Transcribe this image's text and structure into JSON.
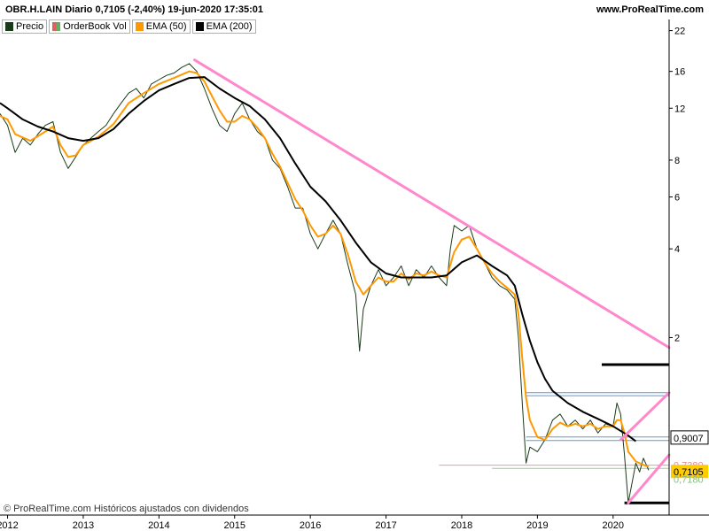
{
  "header": {
    "title": "OBR.H.LAIN Diario 0,7105 (-2,40%) 19-jun-2020 17:35:01",
    "site": "www.ProRealTime.com"
  },
  "legend": [
    {
      "label": "Precio",
      "color": "#1a3a1a"
    },
    {
      "label": "OrderBook Vol",
      "color": "#7fbf7f"
    },
    {
      "label": "EMA (50)",
      "color": "#ff9900"
    },
    {
      "label": "EMA (200)",
      "color": "#000000"
    }
  ],
  "footer": "© ProRealTime.com  Históricos ajustados con dividendos",
  "chart_data": {
    "type": "line",
    "scale": "log",
    "ylim": [
      0.5,
      24
    ],
    "y_ticks": [
      {
        "value": 22,
        "label": "22"
      },
      {
        "value": 16,
        "label": "16"
      },
      {
        "value": 12,
        "label": "12"
      },
      {
        "value": 8,
        "label": "8"
      },
      {
        "value": 6,
        "label": "6"
      },
      {
        "value": 4,
        "label": "4"
      },
      {
        "value": 2,
        "label": "2"
      }
    ],
    "x_ticks": [
      "2012",
      "2013",
      "2014",
      "2015",
      "2016",
      "2017",
      "2018",
      "2019",
      "2020"
    ],
    "x_range": [
      2011.9,
      2020.74
    ],
    "price_labels": [
      {
        "value": 0.9007,
        "label": "0,9007",
        "style": "plain"
      },
      {
        "value": 0.738,
        "label": "0,7380",
        "style": "faint-red"
      },
      {
        "value": 0.7105,
        "label": "0,7105",
        "style": "highlight"
      },
      {
        "value": 0.7,
        "label": "0,7180",
        "style": "faint-green"
      }
    ],
    "series": [
      {
        "name": "Precio",
        "color": "#1a3a1a",
        "points": [
          [
            2011.9,
            11.5
          ],
          [
            2012.0,
            10.5
          ],
          [
            2012.1,
            8.5
          ],
          [
            2012.2,
            9.5
          ],
          [
            2012.3,
            9.0
          ],
          [
            2012.4,
            9.8
          ],
          [
            2012.5,
            10.5
          ],
          [
            2012.6,
            10.8
          ],
          [
            2012.7,
            8.5
          ],
          [
            2012.8,
            7.5
          ],
          [
            2012.9,
            8.2
          ],
          [
            2013.0,
            9.0
          ],
          [
            2013.1,
            9.5
          ],
          [
            2013.2,
            10.0
          ],
          [
            2013.3,
            10.5
          ],
          [
            2013.4,
            11.5
          ],
          [
            2013.5,
            12.5
          ],
          [
            2013.6,
            13.5
          ],
          [
            2013.7,
            14.0
          ],
          [
            2013.8,
            13.0
          ],
          [
            2013.9,
            14.5
          ],
          [
            2014.0,
            15.0
          ],
          [
            2014.1,
            15.5
          ],
          [
            2014.2,
            15.8
          ],
          [
            2014.3,
            16.5
          ],
          [
            2014.4,
            17.0
          ],
          [
            2014.5,
            16.0
          ],
          [
            2014.6,
            14.0
          ],
          [
            2014.7,
            12.0
          ],
          [
            2014.8,
            10.5
          ],
          [
            2014.9,
            10.0
          ],
          [
            2015.0,
            11.5
          ],
          [
            2015.1,
            12.5
          ],
          [
            2015.2,
            11.0
          ],
          [
            2015.3,
            10.0
          ],
          [
            2015.4,
            9.5
          ],
          [
            2015.5,
            8.0
          ],
          [
            2015.6,
            7.5
          ],
          [
            2015.7,
            6.5
          ],
          [
            2015.8,
            5.5
          ],
          [
            2015.9,
            5.5
          ],
          [
            2016.0,
            4.5
          ],
          [
            2016.1,
            4.0
          ],
          [
            2016.2,
            4.5
          ],
          [
            2016.3,
            5.0
          ],
          [
            2016.4,
            4.5
          ],
          [
            2016.5,
            3.5
          ],
          [
            2016.6,
            2.8
          ],
          [
            2016.65,
            1.8
          ],
          [
            2016.7,
            2.5
          ],
          [
            2016.8,
            3.0
          ],
          [
            2016.9,
            3.4
          ],
          [
            2017.0,
            3.0
          ],
          [
            2017.1,
            3.2
          ],
          [
            2017.2,
            3.5
          ],
          [
            2017.3,
            3.0
          ],
          [
            2017.4,
            3.4
          ],
          [
            2017.5,
            3.2
          ],
          [
            2017.6,
            3.5
          ],
          [
            2017.7,
            3.2
          ],
          [
            2017.8,
            3.0
          ],
          [
            2017.85,
            4.0
          ],
          [
            2017.9,
            4.8
          ],
          [
            2018.0,
            4.6
          ],
          [
            2018.1,
            4.8
          ],
          [
            2018.2,
            4.0
          ],
          [
            2018.3,
            3.6
          ],
          [
            2018.4,
            3.2
          ],
          [
            2018.5,
            3.0
          ],
          [
            2018.6,
            2.9
          ],
          [
            2018.7,
            2.7
          ],
          [
            2018.75,
            2.0
          ],
          [
            2018.8,
            1.2
          ],
          [
            2018.85,
            0.75
          ],
          [
            2018.9,
            0.85
          ],
          [
            2019.0,
            0.82
          ],
          [
            2019.1,
            0.9
          ],
          [
            2019.2,
            1.05
          ],
          [
            2019.3,
            1.1
          ],
          [
            2019.4,
            1.0
          ],
          [
            2019.5,
            1.05
          ],
          [
            2019.6,
            0.98
          ],
          [
            2019.7,
            1.05
          ],
          [
            2019.8,
            0.95
          ],
          [
            2019.9,
            1.02
          ],
          [
            2020.0,
            1.0
          ],
          [
            2020.05,
            1.2
          ],
          [
            2020.1,
            1.1
          ],
          [
            2020.15,
            0.8
          ],
          [
            2020.2,
            0.55
          ],
          [
            2020.3,
            0.75
          ],
          [
            2020.35,
            0.7
          ],
          [
            2020.4,
            0.78
          ],
          [
            2020.47,
            0.71
          ]
        ]
      },
      {
        "name": "EMA (50)",
        "color": "#ff9900",
        "points": [
          [
            2011.9,
            11.3
          ],
          [
            2012.0,
            11.0
          ],
          [
            2012.1,
            9.8
          ],
          [
            2012.3,
            9.3
          ],
          [
            2012.5,
            10.0
          ],
          [
            2012.6,
            10.4
          ],
          [
            2012.7,
            9.0
          ],
          [
            2012.8,
            8.2
          ],
          [
            2012.9,
            8.3
          ],
          [
            2013.0,
            9.0
          ],
          [
            2013.2,
            9.6
          ],
          [
            2013.4,
            10.6
          ],
          [
            2013.6,
            12.5
          ],
          [
            2013.8,
            13.5
          ],
          [
            2014.0,
            14.5
          ],
          [
            2014.2,
            15.2
          ],
          [
            2014.4,
            16.0
          ],
          [
            2014.5,
            15.8
          ],
          [
            2014.6,
            14.8
          ],
          [
            2014.7,
            13.2
          ],
          [
            2014.8,
            11.8
          ],
          [
            2014.9,
            10.8
          ],
          [
            2015.0,
            10.8
          ],
          [
            2015.1,
            11.3
          ],
          [
            2015.2,
            11.0
          ],
          [
            2015.3,
            10.3
          ],
          [
            2015.4,
            9.5
          ],
          [
            2015.5,
            8.4
          ],
          [
            2015.6,
            7.6
          ],
          [
            2015.7,
            6.7
          ],
          [
            2015.8,
            5.9
          ],
          [
            2015.9,
            5.4
          ],
          [
            2016.0,
            4.8
          ],
          [
            2016.1,
            4.4
          ],
          [
            2016.2,
            4.5
          ],
          [
            2016.3,
            4.8
          ],
          [
            2016.4,
            4.5
          ],
          [
            2016.5,
            3.8
          ],
          [
            2016.6,
            3.1
          ],
          [
            2016.7,
            2.8
          ],
          [
            2016.8,
            3.0
          ],
          [
            2016.9,
            3.2
          ],
          [
            2017.0,
            3.1
          ],
          [
            2017.1,
            3.1
          ],
          [
            2017.2,
            3.3
          ],
          [
            2017.3,
            3.15
          ],
          [
            2017.4,
            3.3
          ],
          [
            2017.5,
            3.25
          ],
          [
            2017.6,
            3.35
          ],
          [
            2017.7,
            3.25
          ],
          [
            2017.8,
            3.2
          ],
          [
            2017.9,
            3.9
          ],
          [
            2018.0,
            4.3
          ],
          [
            2018.1,
            4.4
          ],
          [
            2018.2,
            4.0
          ],
          [
            2018.3,
            3.6
          ],
          [
            2018.4,
            3.3
          ],
          [
            2018.5,
            3.1
          ],
          [
            2018.6,
            2.95
          ],
          [
            2018.7,
            2.8
          ],
          [
            2018.75,
            2.4
          ],
          [
            2018.8,
            1.7
          ],
          [
            2018.85,
            1.25
          ],
          [
            2018.9,
            1.05
          ],
          [
            2019.0,
            0.92
          ],
          [
            2019.1,
            0.9
          ],
          [
            2019.2,
            0.98
          ],
          [
            2019.3,
            1.03
          ],
          [
            2019.4,
            1.0
          ],
          [
            2019.5,
            1.02
          ],
          [
            2019.6,
            1.0
          ],
          [
            2019.7,
            1.02
          ],
          [
            2019.8,
            0.98
          ],
          [
            2019.9,
            1.0
          ],
          [
            2020.0,
            1.0
          ],
          [
            2020.05,
            1.05
          ],
          [
            2020.1,
            1.05
          ],
          [
            2020.15,
            0.95
          ],
          [
            2020.2,
            0.82
          ],
          [
            2020.3,
            0.76
          ],
          [
            2020.4,
            0.74
          ],
          [
            2020.47,
            0.73
          ]
        ]
      },
      {
        "name": "EMA (200)",
        "color": "#000000",
        "points": [
          [
            2011.9,
            12.5
          ],
          [
            2012.0,
            12.0
          ],
          [
            2012.2,
            11.0
          ],
          [
            2012.4,
            10.4
          ],
          [
            2012.6,
            10.0
          ],
          [
            2012.8,
            9.5
          ],
          [
            2013.0,
            9.3
          ],
          [
            2013.2,
            9.5
          ],
          [
            2013.4,
            10.2
          ],
          [
            2013.6,
            11.5
          ],
          [
            2013.8,
            12.7
          ],
          [
            2014.0,
            13.8
          ],
          [
            2014.2,
            14.5
          ],
          [
            2014.4,
            15.2
          ],
          [
            2014.6,
            15.3
          ],
          [
            2014.8,
            14.0
          ],
          [
            2015.0,
            13.0
          ],
          [
            2015.2,
            12.2
          ],
          [
            2015.4,
            11.0
          ],
          [
            2015.6,
            9.5
          ],
          [
            2015.8,
            7.8
          ],
          [
            2016.0,
            6.5
          ],
          [
            2016.2,
            5.8
          ],
          [
            2016.4,
            5.0
          ],
          [
            2016.6,
            4.2
          ],
          [
            2016.8,
            3.6
          ],
          [
            2017.0,
            3.3
          ],
          [
            2017.2,
            3.2
          ],
          [
            2017.4,
            3.2
          ],
          [
            2017.6,
            3.2
          ],
          [
            2017.8,
            3.25
          ],
          [
            2018.0,
            3.6
          ],
          [
            2018.2,
            3.8
          ],
          [
            2018.4,
            3.5
          ],
          [
            2018.6,
            3.25
          ],
          [
            2018.7,
            3.0
          ],
          [
            2018.8,
            2.4
          ],
          [
            2018.9,
            1.95
          ],
          [
            2019.0,
            1.65
          ],
          [
            2019.1,
            1.45
          ],
          [
            2019.2,
            1.32
          ],
          [
            2019.4,
            1.2
          ],
          [
            2019.6,
            1.12
          ],
          [
            2019.8,
            1.06
          ],
          [
            2020.0,
            1.0
          ],
          [
            2020.2,
            0.93
          ],
          [
            2020.3,
            0.89
          ]
        ]
      }
    ],
    "trendlines": [
      {
        "kind": "main-resistance",
        "color": "#ff88cc",
        "from": [
          2014.47,
          17.5
        ],
        "to": [
          2020.74,
          1.85
        ]
      },
      {
        "kind": "channel-upper",
        "color": "#ff88cc",
        "from": [
          2020.1,
          0.9
        ],
        "to": [
          2020.74,
          1.3
        ]
      },
      {
        "kind": "channel-lower",
        "color": "#ff88cc",
        "from": [
          2020.2,
          0.55
        ],
        "to": [
          2020.74,
          0.8
        ]
      }
    ],
    "levels": [
      {
        "kind": "box-top",
        "color": "#6699cc",
        "value": 1.3,
        "from": 2018.85,
        "to": 2020.74
      },
      {
        "kind": "box-top",
        "color": "#6699cc",
        "value": 1.27,
        "from": 2018.85,
        "to": 2020.74
      },
      {
        "kind": "box-bottom",
        "color": "#6699cc",
        "value": 0.92,
        "from": 2018.85,
        "to": 2020.74
      },
      {
        "kind": "box-bottom",
        "color": "#6699cc",
        "value": 0.895,
        "from": 2018.85,
        "to": 2020.74
      },
      {
        "kind": "black-top",
        "color": "#000000",
        "value": 1.62,
        "from": 2019.85,
        "to": 2020.74
      },
      {
        "kind": "black-bottom",
        "color": "#000000",
        "value": 0.55,
        "from": 2020.15,
        "to": 2020.74
      },
      {
        "kind": "red-faint",
        "color": "#ee9999",
        "value": 0.738,
        "from": 2017.7,
        "to": 2020.74
      },
      {
        "kind": "green-faint",
        "color": "#99cc99",
        "value": 0.72,
        "from": 2018.4,
        "to": 2020.74
      }
    ]
  }
}
